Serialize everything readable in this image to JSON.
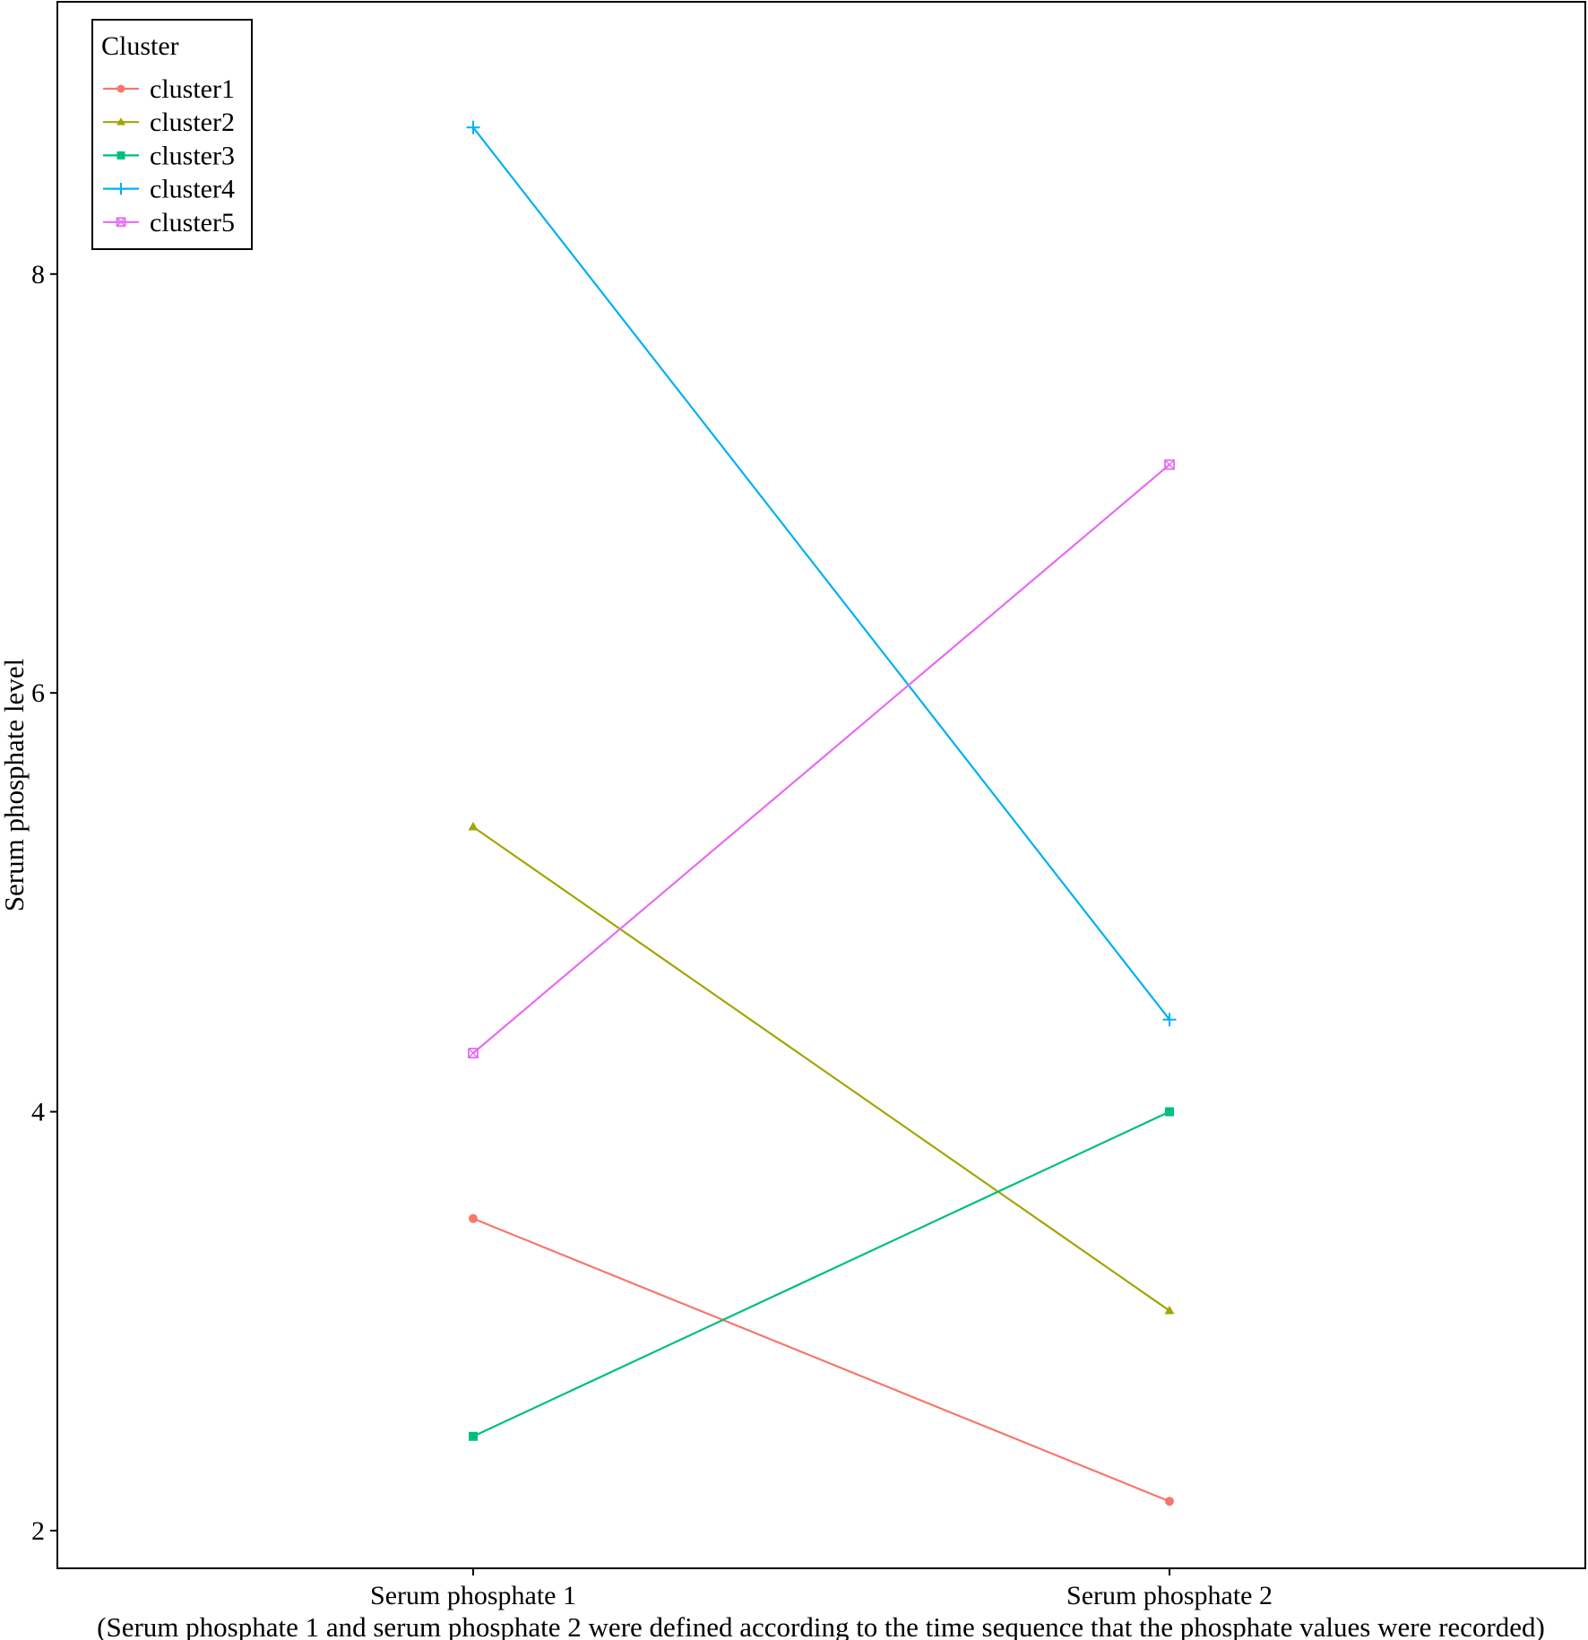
{
  "chart_data": {
    "type": "line",
    "title": "",
    "xlabel_line1": "",
    "xlabel_line2": "(Serum phosphate 1 and serum phosphate 2 were defined according to the time sequence that the phosphate values were recorded)",
    "ylabel": "Serum phosphate level",
    "categories": [
      "Serum phosphate 1",
      "Serum phosphate 2"
    ],
    "ylim": [
      1.82,
      9.3
    ],
    "yticks": [
      2,
      4,
      6,
      8
    ],
    "grid": false,
    "legend": {
      "title": "Cluster",
      "position": "top-left"
    },
    "series": [
      {
        "name": "cluster1",
        "values": [
          3.49,
          2.14
        ],
        "color": "#F8766D",
        "marker": "circle"
      },
      {
        "name": "cluster2",
        "values": [
          5.36,
          3.05
        ],
        "color": "#A3A500",
        "marker": "triangle"
      },
      {
        "name": "cluster3",
        "values": [
          2.45,
          4.0
        ],
        "color": "#00BF7D",
        "marker": "square"
      },
      {
        "name": "cluster4",
        "values": [
          8.7,
          4.44
        ],
        "color": "#00B0F6",
        "marker": "plus"
      },
      {
        "name": "cluster5",
        "values": [
          4.28,
          7.09
        ],
        "color": "#E76BF3",
        "marker": "square-cross"
      }
    ]
  }
}
